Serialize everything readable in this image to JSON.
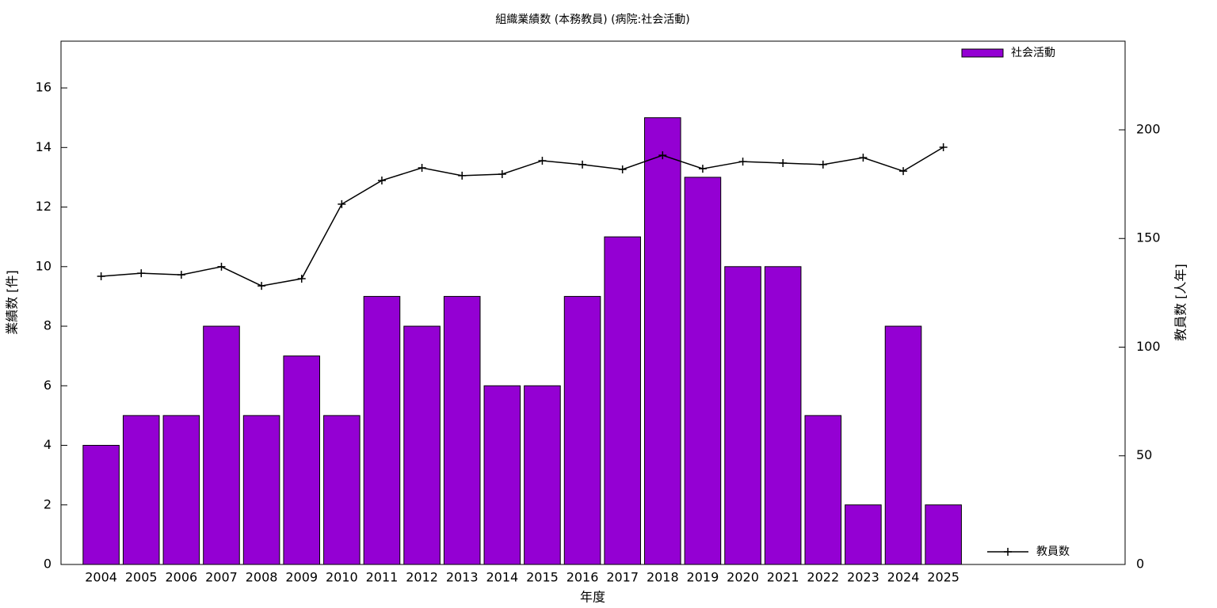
{
  "chart_data": {
    "type": "bar",
    "title": "組織業績数 (本務教員) (病院:社会活動)",
    "x_label": "年度",
    "y_label": "業績数 [件]",
    "y2_label": "教員数 [人年]",
    "categories": [
      "2004",
      "2005",
      "2006",
      "2007",
      "2008",
      "2009",
      "2010",
      "2011",
      "2012",
      "2013",
      "2014",
      "2015",
      "2016",
      "2017",
      "2018",
      "2019",
      "2020",
      "2021",
      "2022",
      "2023",
      "2024",
      "2025"
    ],
    "series": [
      {
        "name": "社会活動",
        "type": "bar",
        "color": "#9400d3",
        "values": [
          4,
          5,
          5,
          8,
          5,
          7,
          5,
          9,
          8,
          9,
          6,
          6,
          9,
          11,
          15,
          13,
          10,
          10,
          5,
          2,
          8,
          2
        ]
      },
      {
        "name": "教員数",
        "type": "line",
        "axis": "y2",
        "color": "#000000",
        "values": [
          132.6,
          134,
          133.3,
          137,
          128.2,
          131.5,
          165.8,
          176.7,
          182.5,
          178.9,
          179.6,
          185.8,
          184,
          181.8,
          188.3,
          182.1,
          185.4,
          184.7,
          184,
          187.2,
          181,
          192
        ]
      }
    ],
    "ylim": [
      0,
      17.57
    ],
    "yticks": [
      0,
      2,
      4,
      6,
      8,
      10,
      12,
      14,
      16
    ],
    "y2lim": [
      0,
      240.8
    ],
    "y2ticks": [
      0,
      50,
      100,
      150,
      200
    ],
    "grid": false
  }
}
